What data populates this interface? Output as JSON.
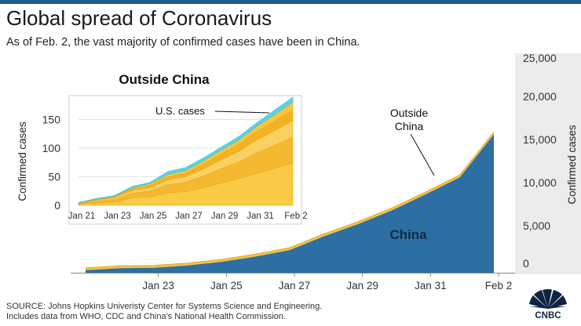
{
  "title": "Global spread of Coronavirus",
  "subtitle": "As of Feb. 2, the vast majority of confirmed cases have been in China.",
  "source": {
    "line1": "SOURCE: Johns Hopkins Univeristy Center for Systems Science and Engineering.",
    "line2": "Includes data from WHO, CDC and China's National Health Commission."
  },
  "logo": {
    "name": "cnbc-peacock-logo",
    "text": "CNBC"
  },
  "colors": {
    "china": "#2e6fa3",
    "outside": "#f6c343",
    "us": "#5ad3e6",
    "inset_bands": [
      "#f8ca46",
      "#f4b930",
      "#f9d160",
      "#f2b224",
      "#f7c53c"
    ]
  },
  "chart_data": [
    {
      "type": "area",
      "stacked": true,
      "title": "",
      "ylabel": "Confirmed cases",
      "ylim": [
        0,
        25000
      ],
      "y_ticks": [
        "0",
        "5,000",
        "10,000",
        "15,000",
        "20,000",
        "25,000"
      ],
      "y_tick_values": [
        0,
        5000,
        10000,
        15000,
        20000,
        25000
      ],
      "y_axis_position": "right",
      "x_ticks": [
        "Jan 23",
        "Jan 25",
        "Jan 27",
        "Jan 29",
        "Jan 31",
        "Feb 2"
      ],
      "x": [
        "Jan 21",
        "Jan 22",
        "Jan 23",
        "Jan 24",
        "Jan 25",
        "Jan 26",
        "Jan 27",
        "Jan 28",
        "Jan 29",
        "Jan 30",
        "Jan 31",
        "Feb 1",
        "Feb 2"
      ],
      "series": [
        {
          "name": "China",
          "values": [
            310,
            550,
            600,
            900,
            1350,
            2000,
            2800,
            4500,
            6000,
            7700,
            9700,
            11800,
            17100
          ]
        },
        {
          "name": "Outside China",
          "values": [
            4,
            8,
            12,
            26,
            30,
            44,
            50,
            65,
            80,
            95,
            115,
            135,
            160
          ]
        }
      ]
    },
    {
      "type": "area",
      "stacked": true,
      "title": "Outside China",
      "ylabel": "Confirmed cases",
      "ylim": [
        0,
        185
      ],
      "y_ticks": [
        "0",
        "50",
        "100",
        "150"
      ],
      "y_tick_values": [
        0,
        50,
        100,
        150
      ],
      "x_ticks": [
        "Jan 21",
        "Jan 23",
        "Jan 25",
        "Jan 27",
        "Jan 29",
        "Jan 31",
        "Feb 2"
      ],
      "x": [
        "Jan 21",
        "Jan 22",
        "Jan 23",
        "Jan 24",
        "Jan 25",
        "Jan 26",
        "Jan 27",
        "Jan 28",
        "Jan 29",
        "Jan 30",
        "Jan 31",
        "Feb 1",
        "Feb 2"
      ],
      "series": [
        {
          "name": "",
          "values": [
            2,
            4,
            6,
            13,
            15,
            22,
            24,
            31,
            39,
            47,
            56,
            65,
            74
          ]
        },
        {
          "name": "",
          "values": [
            1,
            3,
            4,
            8,
            10,
            14,
            16,
            20,
            25,
            29,
            36,
            40,
            45
          ]
        },
        {
          "name": "",
          "values": [
            1,
            2,
            3,
            5,
            6,
            9,
            10,
            13,
            16,
            19,
            23,
            26,
            29
          ]
        },
        {
          "name": "",
          "values": [
            0,
            1,
            2,
            3,
            4,
            5,
            6,
            8,
            10,
            12,
            14,
            16,
            19
          ]
        },
        {
          "name": "",
          "values": [
            0,
            1,
            1,
            2,
            3,
            4,
            5,
            6,
            7,
            8,
            10,
            12,
            14
          ]
        },
        {
          "name": "U.S. cases",
          "values": [
            1,
            1,
            1,
            2,
            2,
            5,
            5,
            5,
            5,
            6,
            6,
            8,
            8
          ]
        }
      ],
      "annotations": [
        {
          "text": "U.S. cases",
          "target_series": "U.S. cases",
          "at": "Feb 1"
        }
      ]
    }
  ],
  "annotations": {
    "outside_china": [
      "Outside",
      "China"
    ],
    "china": "China"
  }
}
